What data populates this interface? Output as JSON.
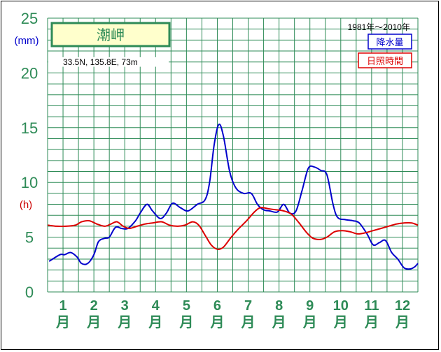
{
  "chart_data": {
    "type": "line",
    "station": "潮岬",
    "coordinates": "33.5N,   135.8E,   73m",
    "period": "1981年〜2010年",
    "unit_precip": "(mm)",
    "unit_sun": "(h)",
    "yticks": [
      "0",
      "5",
      "10",
      "15",
      "20",
      "25"
    ],
    "ylim": [
      0,
      25
    ],
    "categories": [
      {
        "num": "1",
        "unit": "月"
      },
      {
        "num": "2",
        "unit": "月"
      },
      {
        "num": "3",
        "unit": "月"
      },
      {
        "num": "4",
        "unit": "月"
      },
      {
        "num": "5",
        "unit": "月"
      },
      {
        "num": "6",
        "unit": "月"
      },
      {
        "num": "7",
        "unit": "月"
      },
      {
        "num": "8",
        "unit": "月"
      },
      {
        "num": "9",
        "unit": "月"
      },
      {
        "num": "10",
        "unit": "月"
      },
      {
        "num": "11",
        "unit": "月"
      },
      {
        "num": "12",
        "unit": "月"
      }
    ],
    "x_domain": [
      0.5,
      12.5
    ],
    "series": [
      {
        "name": "降水量",
        "color": "#0000cc",
        "points": [
          [
            0.55,
            2.8
          ],
          [
            0.9,
            3.4
          ],
          [
            1.05,
            3.4
          ],
          [
            1.25,
            3.6
          ],
          [
            1.45,
            3.2
          ],
          [
            1.6,
            2.6
          ],
          [
            1.8,
            2.6
          ],
          [
            2.0,
            3.4
          ],
          [
            2.15,
            4.6
          ],
          [
            2.35,
            4.9
          ],
          [
            2.5,
            5.0
          ],
          [
            2.7,
            5.9
          ],
          [
            2.9,
            5.8
          ],
          [
            3.1,
            5.8
          ],
          [
            3.35,
            6.5
          ],
          [
            3.5,
            7.2
          ],
          [
            3.72,
            8.0
          ],
          [
            3.9,
            7.4
          ],
          [
            4.15,
            6.7
          ],
          [
            4.35,
            7.2
          ],
          [
            4.55,
            8.1
          ],
          [
            4.8,
            7.7
          ],
          [
            5.05,
            7.4
          ],
          [
            5.35,
            8.0
          ],
          [
            5.6,
            8.4
          ],
          [
            5.75,
            10.0
          ],
          [
            5.9,
            13.5
          ],
          [
            6.05,
            15.3
          ],
          [
            6.2,
            14.2
          ],
          [
            6.4,
            11.0
          ],
          [
            6.6,
            9.5
          ],
          [
            6.85,
            9.0
          ],
          [
            7.1,
            9.0
          ],
          [
            7.3,
            8.0
          ],
          [
            7.5,
            7.5
          ],
          [
            7.7,
            7.4
          ],
          [
            7.95,
            7.3
          ],
          [
            8.15,
            8.0
          ],
          [
            8.35,
            7.2
          ],
          [
            8.55,
            7.4
          ],
          [
            8.75,
            9.3
          ],
          [
            8.95,
            11.3
          ],
          [
            9.15,
            11.4
          ],
          [
            9.35,
            11.1
          ],
          [
            9.55,
            10.7
          ],
          [
            9.75,
            8.0
          ],
          [
            9.9,
            6.8
          ],
          [
            10.15,
            6.6
          ],
          [
            10.4,
            6.5
          ],
          [
            10.6,
            6.3
          ],
          [
            10.85,
            5.3
          ],
          [
            11.05,
            4.3
          ],
          [
            11.25,
            4.5
          ],
          [
            11.45,
            4.7
          ],
          [
            11.65,
            3.6
          ],
          [
            11.85,
            3.0
          ],
          [
            12.05,
            2.2
          ],
          [
            12.25,
            2.1
          ],
          [
            12.4,
            2.3
          ],
          [
            12.5,
            2.6
          ]
        ]
      },
      {
        "name": "日照時間",
        "color": "#dd0000",
        "points": [
          [
            0.5,
            6.1
          ],
          [
            0.8,
            6.0
          ],
          [
            1.1,
            6.0
          ],
          [
            1.4,
            6.1
          ],
          [
            1.6,
            6.4
          ],
          [
            1.85,
            6.5
          ],
          [
            2.1,
            6.2
          ],
          [
            2.35,
            6.0
          ],
          [
            2.55,
            6.2
          ],
          [
            2.75,
            6.4
          ],
          [
            2.95,
            6.0
          ],
          [
            3.15,
            5.8
          ],
          [
            3.4,
            6.0
          ],
          [
            3.65,
            6.2
          ],
          [
            3.9,
            6.3
          ],
          [
            4.2,
            6.4
          ],
          [
            4.45,
            6.1
          ],
          [
            4.7,
            6.0
          ],
          [
            4.95,
            6.1
          ],
          [
            5.2,
            6.4
          ],
          [
            5.4,
            6.1
          ],
          [
            5.6,
            5.2
          ],
          [
            5.8,
            4.3
          ],
          [
            6.0,
            3.9
          ],
          [
            6.2,
            4.1
          ],
          [
            6.45,
            5.0
          ],
          [
            6.7,
            5.8
          ],
          [
            6.95,
            6.5
          ],
          [
            7.2,
            7.3
          ],
          [
            7.4,
            7.7
          ],
          [
            7.65,
            7.6
          ],
          [
            7.9,
            7.5
          ],
          [
            8.15,
            7.4
          ],
          [
            8.4,
            7.1
          ],
          [
            8.65,
            6.3
          ],
          [
            8.9,
            5.4
          ],
          [
            9.1,
            4.9
          ],
          [
            9.35,
            4.8
          ],
          [
            9.55,
            5.0
          ],
          [
            9.8,
            5.5
          ],
          [
            10.05,
            5.6
          ],
          [
            10.3,
            5.5
          ],
          [
            10.55,
            5.3
          ],
          [
            10.8,
            5.4
          ],
          [
            11.05,
            5.6
          ],
          [
            11.3,
            5.8
          ],
          [
            11.55,
            6.0
          ],
          [
            11.8,
            6.2
          ],
          [
            12.05,
            6.3
          ],
          [
            12.3,
            6.3
          ],
          [
            12.5,
            6.1
          ]
        ]
      }
    ]
  }
}
